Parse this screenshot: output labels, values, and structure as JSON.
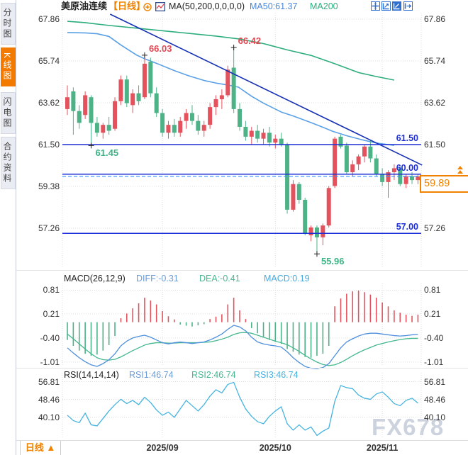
{
  "header": {
    "title": "美原油连续",
    "period_tag": "【日线】",
    "indicator_label": "MA(50,200,0,0,0,0)",
    "ma50_label": "MA50:61.37",
    "ma200_label": "MA200"
  },
  "sidebar": {
    "items": [
      {
        "label": "分时图",
        "active": false
      },
      {
        "label": "K线图",
        "active": true
      },
      {
        "label": "闪电图",
        "active": false
      },
      {
        "label": "合约资料",
        "active": false
      }
    ]
  },
  "toolbar": {
    "icons": [
      "pan-cross-icon",
      "axis-zoom-icon",
      "axis-chart-icon-active",
      "exit-arrow-icon"
    ]
  },
  "colors": {
    "up": "#e4535d",
    "down": "#4eb287",
    "ma50": "#5aa0e6",
    "ma200": "#2fae7d",
    "trend": "#1630b4",
    "hline": "#1d2fd6",
    "accent_orange": "#f08200",
    "diff": "#6b9bd8",
    "dea": "#45b88e",
    "macd_line": "#45aade",
    "rsi_line": "#45b3e0",
    "grid": "#dcdcdc",
    "label": "#333333",
    "annot_red": "#e04a55",
    "annot_green": "#3cb385",
    "current_dash": "#3b8df0",
    "watermark": "#ccd3de"
  },
  "main_chart": {
    "y_ticks": [
      {
        "text": "67.86",
        "v": 67.86
      },
      {
        "text": "65.74",
        "v": 65.74
      },
      {
        "text": "63.62",
        "v": 63.62
      },
      {
        "text": "61.50",
        "v": 61.5
      },
      {
        "text": "59.38",
        "v": 59.38
      },
      {
        "text": "57.26",
        "v": 57.26
      }
    ],
    "hlines": [
      {
        "price": 61.5,
        "label": "61.50"
      },
      {
        "price": 60.0,
        "label": "60.00"
      },
      {
        "price": 57.0,
        "label": "57.00"
      }
    ],
    "current_price": {
      "value": "59.89",
      "price": 59.89
    },
    "annotations": [
      {
        "text": "66.03",
        "i": 13,
        "price": 66.03,
        "color": "red",
        "pos": "ar"
      },
      {
        "text": "66.42",
        "i": 28,
        "price": 66.42,
        "color": "red",
        "pos": "ar"
      },
      {
        "text": "61.45",
        "i": 4,
        "price": 61.45,
        "color": "green",
        "pos": "br"
      },
      {
        "text": "55.96",
        "i": 42,
        "price": 55.96,
        "color": "green",
        "pos": "br"
      }
    ]
  },
  "macd_panel": {
    "name_label": "MACD(26,12,9)",
    "diff_label": "DIFF:-0.31",
    "dea_label": "DEA:-0.41",
    "macd_label": "MACD:0.19",
    "y_ticks": [
      {
        "text": "0.81",
        "v": 0.81
      },
      {
        "text": "0.21",
        "v": 0.21
      },
      {
        "text": "-0.40",
        "v": -0.4
      },
      {
        "text": "-1.01",
        "v": -1.01
      }
    ]
  },
  "rsi_panel": {
    "name_label": "RSI(14,14,14)",
    "rsi1_label": "RSI1:46.74",
    "rsi2_label": "RSI2:46.74",
    "rsi3_label": "RSI3:46.74",
    "y_ticks": [
      {
        "text": "56.81",
        "v": 56.81
      },
      {
        "text": "48.46",
        "v": 48.46
      },
      {
        "text": "40.10",
        "v": 40.1
      }
    ]
  },
  "x_axis": {
    "labels": [
      {
        "text": "2025/09",
        "i": 16
      },
      {
        "text": "2025/10",
        "i": 35
      },
      {
        "text": "2025/11",
        "i": 53
      }
    ]
  },
  "bottom_tab": {
    "label": "日线 ▲"
  },
  "watermark": "FX678",
  "chart_data": [
    {
      "type": "candlestick",
      "title": "美原油连续 日线 (WTI crude continuous, daily)",
      "ylim": [
        55.25,
        68.11
      ],
      "x_months": [
        {
          "label": "2025/09",
          "i": 16
        },
        {
          "label": "2025/10",
          "i": 35
        },
        {
          "label": "2025/11",
          "i": 53
        }
      ],
      "ohlc": [
        [
          63.3,
          64.5,
          63.0,
          63.9
        ],
        [
          64.2,
          64.4,
          62.0,
          63.2
        ],
        [
          63.2,
          63.5,
          62.3,
          62.6
        ],
        [
          63.0,
          64.2,
          62.8,
          64.0
        ],
        [
          63.9,
          64.0,
          61.45,
          62.6
        ],
        [
          62.6,
          62.9,
          61.9,
          62.1
        ],
        [
          62.1,
          62.6,
          61.8,
          62.5
        ],
        [
          62.5,
          62.9,
          62.0,
          62.2
        ],
        [
          62.3,
          63.9,
          62.2,
          63.7
        ],
        [
          63.7,
          65.0,
          63.5,
          64.8
        ],
        [
          64.8,
          65.0,
          63.4,
          63.6
        ],
        [
          63.5,
          64.3,
          63.1,
          64.1
        ],
        [
          64.1,
          64.5,
          63.5,
          63.7
        ],
        [
          63.9,
          66.03,
          63.8,
          65.6
        ],
        [
          65.7,
          65.9,
          63.9,
          64.1
        ],
        [
          64.1,
          64.4,
          62.9,
          63.1
        ],
        [
          63.1,
          63.3,
          61.9,
          62.1
        ],
        [
          62.1,
          62.7,
          61.8,
          62.5
        ],
        [
          62.5,
          62.8,
          61.9,
          62.1
        ],
        [
          62.1,
          62.9,
          61.9,
          62.7
        ],
        [
          62.7,
          63.3,
          62.3,
          63.1
        ],
        [
          63.1,
          63.5,
          62.5,
          62.7
        ],
        [
          62.7,
          63.0,
          62.0,
          62.2
        ],
        [
          62.2,
          62.7,
          61.9,
          62.5
        ],
        [
          62.5,
          63.6,
          62.3,
          63.4
        ],
        [
          63.4,
          64.0,
          63.0,
          63.8
        ],
        [
          63.8,
          64.3,
          63.3,
          64.0
        ],
        [
          64.0,
          65.5,
          63.9,
          65.3
        ],
        [
          65.4,
          66.42,
          63.1,
          63.3
        ],
        [
          63.3,
          63.6,
          62.2,
          62.4
        ],
        [
          62.4,
          62.7,
          61.7,
          61.9
        ],
        [
          61.9,
          62.4,
          61.5,
          62.2
        ],
        [
          62.2,
          62.5,
          61.6,
          61.8
        ],
        [
          61.8,
          62.3,
          61.5,
          62.1
        ],
        [
          62.1,
          62.4,
          61.4,
          61.6
        ],
        [
          61.6,
          62.0,
          61.3,
          61.8
        ],
        [
          61.8,
          62.1,
          61.4,
          61.5
        ],
        [
          61.5,
          61.6,
          58.0,
          58.2
        ],
        [
          58.2,
          59.7,
          58.1,
          59.5
        ],
        [
          59.5,
          59.6,
          58.5,
          58.7
        ],
        [
          58.7,
          58.8,
          56.9,
          57.0
        ],
        [
          56.9,
          57.4,
          56.6,
          57.3
        ],
        [
          57.3,
          57.4,
          55.96,
          56.8
        ],
        [
          56.8,
          57.5,
          56.4,
          57.4
        ],
        [
          57.4,
          59.4,
          57.3,
          59.3
        ],
        [
          59.4,
          61.9,
          59.3,
          61.8
        ],
        [
          61.9,
          62.0,
          61.3,
          61.4
        ],
        [
          61.45,
          61.6,
          60.0,
          60.1
        ],
        [
          60.1,
          60.7,
          59.9,
          60.5
        ],
        [
          60.5,
          61.0,
          60.2,
          60.9
        ],
        [
          60.9,
          61.5,
          60.6,
          61.4
        ],
        [
          61.4,
          61.7,
          60.6,
          60.8
        ],
        [
          60.8,
          61.0,
          59.9,
          60.0
        ],
        [
          60.0,
          60.3,
          59.4,
          59.6
        ],
        [
          59.6,
          60.2,
          58.8,
          60.1
        ],
        [
          60.1,
          60.5,
          59.7,
          60.3
        ],
        [
          60.3,
          60.4,
          59.4,
          59.5
        ],
        [
          59.5,
          60.0,
          59.3,
          59.9
        ],
        [
          59.9,
          60.1,
          59.5,
          59.7
        ],
        [
          59.7,
          60.0,
          59.5,
          59.89
        ]
      ],
      "ma200_anchors": [
        [
          0,
          67.75
        ],
        [
          3,
          67.68
        ],
        [
          7,
          67.54
        ],
        [
          11,
          67.42
        ],
        [
          15,
          67.3
        ],
        [
          20,
          67.15
        ],
        [
          25,
          67.0
        ],
        [
          29,
          66.85
        ],
        [
          33,
          66.62
        ],
        [
          37,
          66.3
        ],
        [
          41,
          66.02
        ],
        [
          45,
          65.6
        ],
        [
          49,
          65.15
        ],
        [
          52,
          64.95
        ],
        [
          55,
          64.77
        ]
      ],
      "ma50_anchors": [
        [
          0,
          67.18
        ],
        [
          3,
          67.16
        ],
        [
          5,
          67.12
        ],
        [
          7,
          66.98
        ],
        [
          9,
          66.55
        ],
        [
          11.7,
          66.03
        ],
        [
          13,
          65.85
        ],
        [
          15,
          65.62
        ],
        [
          18,
          65.25
        ],
        [
          20.4,
          64.99
        ],
        [
          23,
          64.75
        ],
        [
          25,
          64.62
        ],
        [
          27,
          64.52
        ],
        [
          28.8,
          64.41
        ],
        [
          31,
          63.95
        ],
        [
          33,
          63.6
        ],
        [
          36,
          63.15
        ],
        [
          38,
          62.95
        ],
        [
          40.7,
          62.65
        ],
        [
          43,
          62.38
        ],
        [
          44.6,
          62.18
        ],
        [
          47,
          61.95
        ],
        [
          49.5,
          61.75
        ],
        [
          52,
          61.58
        ],
        [
          55,
          61.46
        ]
      ],
      "trendline": {
        "from": [
          7.2,
          68.11
        ],
        "to": [
          59.7,
          60.46
        ]
      },
      "support_resistance": [
        61.5,
        60.0,
        57.0
      ],
      "last_price": 59.89
    },
    {
      "type": "bar",
      "name": "MACD(26,12,9)",
      "ylim": [
        -1.102,
        0.944
      ],
      "hist": [
        -0.45,
        -0.6,
        -0.72,
        -0.8,
        -0.85,
        -0.82,
        -0.72,
        -0.58,
        -0.35,
        0.1,
        0.22,
        0.35,
        0.48,
        0.62,
        0.55,
        0.45,
        0.28,
        0.15,
        0.07,
        -0.06,
        -0.09,
        -0.11,
        -0.08,
        -0.05,
        0.08,
        0.14,
        0.2,
        0.45,
        0.62,
        0.3,
        0.08,
        -0.15,
        -0.28,
        -0.38,
        -0.45,
        -0.5,
        -0.55,
        -0.68,
        -0.75,
        -0.82,
        -0.88,
        -0.9,
        -0.85,
        -0.8,
        -0.6,
        0.4,
        0.6,
        0.72,
        0.78,
        0.8,
        0.76,
        0.7,
        0.62,
        0.5,
        0.4,
        0.3,
        0.24,
        0.19,
        0.16,
        0.19
      ],
      "diff": [
        -0.65,
        -0.78,
        -0.9,
        -1.0,
        -1.08,
        -1.12,
        -1.05,
        -0.95,
        -0.8,
        -0.6,
        -0.48,
        -0.4,
        -0.36,
        -0.33,
        -0.38,
        -0.45,
        -0.52,
        -0.55,
        -0.52,
        -0.5,
        -0.52,
        -0.54,
        -0.52,
        -0.5,
        -0.45,
        -0.38,
        -0.3,
        -0.18,
        -0.08,
        -0.12,
        -0.22,
        -0.38,
        -0.5,
        -0.55,
        -0.58,
        -0.6,
        -0.63,
        -0.75,
        -0.9,
        -1.02,
        -1.12,
        -1.17,
        -1.18,
        -1.15,
        -1.05,
        -0.85,
        -0.65,
        -0.5,
        -0.42,
        -0.35,
        -0.3,
        -0.28,
        -0.28,
        -0.3,
        -0.32,
        -0.34,
        -0.35,
        -0.34,
        -0.32,
        -0.31
      ],
      "dea": [
        -0.3,
        -0.42,
        -0.55,
        -0.68,
        -0.8,
        -0.9,
        -0.95,
        -0.96,
        -0.94,
        -0.88,
        -0.8,
        -0.72,
        -0.65,
        -0.58,
        -0.54,
        -0.52,
        -0.52,
        -0.53,
        -0.53,
        -0.52,
        -0.52,
        -0.52,
        -0.52,
        -0.51,
        -0.5,
        -0.47,
        -0.43,
        -0.38,
        -0.31,
        -0.27,
        -0.26,
        -0.28,
        -0.33,
        -0.38,
        -0.43,
        -0.48,
        -0.52,
        -0.57,
        -0.65,
        -0.74,
        -0.84,
        -0.93,
        -1.01,
        -1.07,
        -1.1,
        -1.08,
        -1.02,
        -0.94,
        -0.85,
        -0.77,
        -0.7,
        -0.64,
        -0.58,
        -0.54,
        -0.5,
        -0.47,
        -0.44,
        -0.42,
        -0.41,
        -0.41
      ]
    },
    {
      "type": "line",
      "name": "RSI(14,14,14)",
      "ylim": [
        30.31,
        60.31
      ],
      "values": [
        41.0,
        38.5,
        37.5,
        42.0,
        36.5,
        36.0,
        39.5,
        43.0,
        46.0,
        48.5,
        46.5,
        48.0,
        46.0,
        49.5,
        47.0,
        43.5,
        41.0,
        42.5,
        40.0,
        44.0,
        48.0,
        45.5,
        43.0,
        46.0,
        50.0,
        53.0,
        51.5,
        55.5,
        56.5,
        49.5,
        44.0,
        40.5,
        38.0,
        37.0,
        40.5,
        43.0,
        45.0,
        37.0,
        34.0,
        36.5,
        34.0,
        35.5,
        31.5,
        33.5,
        35.0,
        47.5,
        55.0,
        54.0,
        53.5,
        50.5,
        49.0,
        48.5,
        51.0,
        52.0,
        49.5,
        46.5,
        45.5,
        48.0,
        49.0,
        46.74
      ]
    }
  ]
}
